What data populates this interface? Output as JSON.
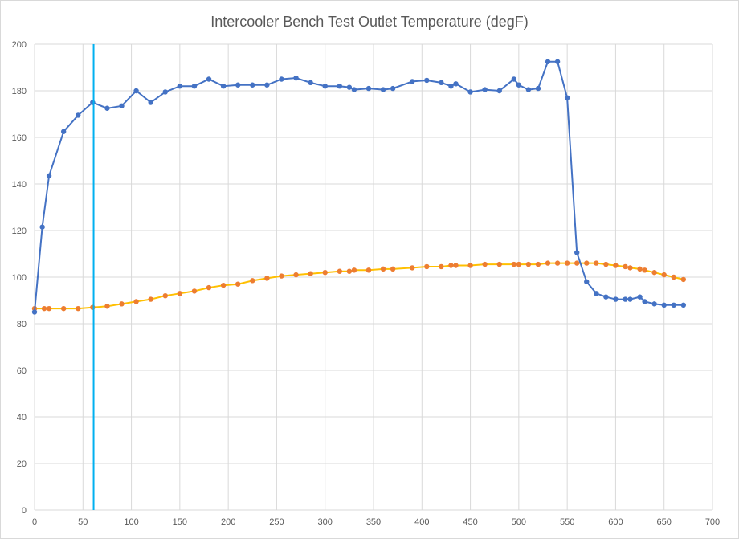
{
  "chart_data": {
    "type": "line",
    "title": "Intercooler Bench Test Outlet Temperature (degF)",
    "xlabel": "",
    "ylabel": "",
    "xlim": [
      0,
      700
    ],
    "ylim": [
      0,
      200
    ],
    "x_ticks": [
      0,
      50,
      100,
      150,
      200,
      250,
      300,
      350,
      400,
      450,
      500,
      550,
      600,
      650,
      700
    ],
    "y_ticks": [
      0,
      20,
      40,
      60,
      80,
      100,
      120,
      140,
      160,
      180,
      200
    ],
    "grid": true,
    "legend": "none",
    "vertical_marker_x": 61,
    "colors": {
      "series1": "#4472c4",
      "series2": "#ed7d31",
      "series2_line": "#ffc000",
      "marker_line": "#00b0f0",
      "grid": "#d9d9d9"
    },
    "series": [
      {
        "x": [
          0,
          8,
          15,
          30,
          45,
          60,
          75,
          90,
          105,
          120,
          135,
          150,
          165,
          180,
          195,
          210,
          225,
          240,
          255,
          270,
          285,
          300,
          315,
          325,
          330,
          345,
          360,
          370,
          390,
          405,
          420,
          430,
          435,
          450,
          465,
          480,
          495,
          500,
          510,
          520,
          530,
          540,
          550,
          560,
          570,
          580,
          590,
          600,
          610,
          615,
          625,
          630,
          640,
          650,
          660,
          670
        ],
        "values": [
          85,
          121.5,
          143.5,
          162.5,
          169.5,
          175,
          172.5,
          173.5,
          180,
          175,
          179.5,
          182,
          182,
          185,
          182,
          182.5,
          182.5,
          182.5,
          185,
          185.5,
          183.5,
          182,
          182,
          181.5,
          180.5,
          181,
          180.5,
          181,
          184,
          184.5,
          183.5,
          182,
          183,
          179.5,
          180.5,
          180,
          185,
          182.5,
          180.5,
          181,
          192.5,
          192.5,
          177,
          110.5,
          98,
          93,
          91.5,
          90.5,
          90.5,
          90.5,
          91.5,
          89.5,
          88.5,
          88,
          88,
          88
        ]
      },
      {
        "x": [
          0,
          10,
          15,
          30,
          45,
          60,
          75,
          90,
          105,
          120,
          135,
          150,
          165,
          180,
          195,
          210,
          225,
          240,
          255,
          270,
          285,
          300,
          315,
          325,
          330,
          345,
          360,
          370,
          390,
          405,
          420,
          430,
          435,
          450,
          465,
          480,
          495,
          500,
          510,
          520,
          530,
          540,
          550,
          560,
          570,
          580,
          590,
          600,
          610,
          615,
          625,
          630,
          640,
          650,
          660,
          670
        ],
        "values": [
          86.5,
          86.5,
          86.5,
          86.5,
          86.5,
          87,
          87.5,
          88.5,
          89.5,
          90.5,
          92,
          93,
          94,
          95.5,
          96.5,
          97,
          98.5,
          99.5,
          100.5,
          101,
          101.5,
          102,
          102.5,
          102.5,
          103,
          103,
          103.5,
          103.5,
          104,
          104.5,
          104.5,
          105,
          105,
          105,
          105.5,
          105.5,
          105.5,
          105.5,
          105.5,
          105.5,
          106,
          106,
          106,
          106,
          106,
          106,
          105.5,
          105,
          104.5,
          104,
          103.5,
          103,
          102,
          101,
          100,
          99
        ]
      }
    ]
  }
}
